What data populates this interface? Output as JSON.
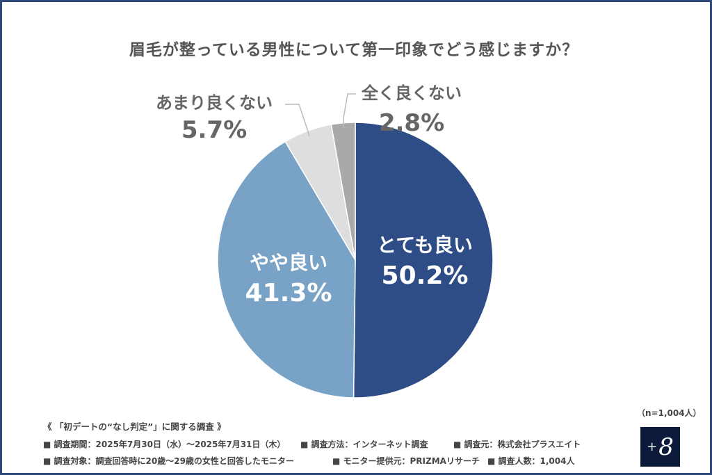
{
  "chart_data": {
    "type": "pie",
    "title": "眉毛が整っている男性について第一印象でどう感じますか？",
    "slices": [
      {
        "label": "とても良い",
        "value": 50.2,
        "display": "50.2%",
        "color": "#2e4d87"
      },
      {
        "label": "やや良い",
        "value": 41.3,
        "display": "41.3%",
        "color": "#79a3c6"
      },
      {
        "label": "あまり良くない",
        "value": 5.7,
        "display": "5.7%",
        "color": "#dedede"
      },
      {
        "label": "全く良くない",
        "value": 2.8,
        "display": "2.8%",
        "color": "#a9a9a9"
      }
    ],
    "sample": "（n=1,004人）"
  },
  "footer": {
    "heading": "《 「初デートの“なし判定”」に関する調査 》",
    "items": [
      "■ 調査期間：2025年7月30日（水）～2025年7月31日（木）",
      "■ 調査方法：インターネット調査",
      "■ 調査元：株式会社プラスエイト",
      "■ 調査対象：調査回答時に20歳～29歳の女性と回答したモニター",
      "■ モニター提供元：PRIZMAリサーチ",
      "■ 調査人数：1,004人"
    ]
  },
  "logo": {
    "plus": "+",
    "eight": "8"
  }
}
